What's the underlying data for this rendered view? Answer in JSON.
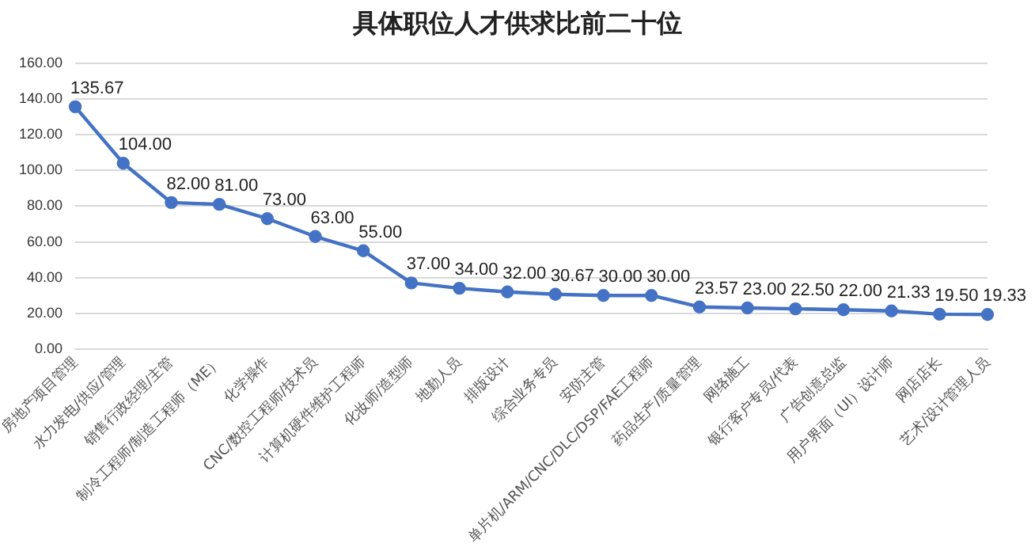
{
  "chart_data": {
    "type": "line",
    "title": "具体职位人才供求比前二十位",
    "categories": [
      "房地产项目管理",
      "水力发电/供应/管理",
      "销售行政经理/主管",
      "制冷工程师/制造工程师（ME）",
      "化学操作",
      "CNC/数控工程师/技术员",
      "计算机硬件维护工程师",
      "化妆师/造型师",
      "地勤人员",
      "排版设计",
      "综合业务专员",
      "安防主管",
      "单片机/ARM/CNC/DLC/DSP/FAE工程师",
      "药品生产/质量管理",
      "网络施工",
      "银行客户专员/代表",
      "广告创意总监",
      "用户界面（UI）设计师",
      "网店店长",
      "艺术/设计管理人员"
    ],
    "series": [
      {
        "color": "#4472c4",
        "values": [
          135.67,
          104,
          82,
          81,
          73,
          63,
          55,
          37,
          34,
          32,
          30.67,
          30,
          30,
          23.57,
          23,
          22.5,
          22,
          21.33,
          19.5,
          19.33
        ],
        "value_labels": [
          "135.67",
          "104.00",
          "82.00",
          "81.00",
          "73.00",
          "63.00",
          "55.00",
          "37.00",
          "34.00",
          "32.00",
          "30.67",
          "30.00",
          "30.00",
          "23.57",
          "23.00",
          "22.50",
          "22.00",
          "21.33",
          "19.50",
          "19.33"
        ]
      }
    ],
    "ylim": [
      0,
      160
    ],
    "yticks": [
      {
        "value": 0,
        "label": "0.00"
      },
      {
        "value": 20,
        "label": "20.00"
      },
      {
        "value": 40,
        "label": "40.00"
      },
      {
        "value": 60,
        "label": "60.00"
      },
      {
        "value": 80,
        "label": "80.00"
      },
      {
        "value": 100,
        "label": "100.00"
      },
      {
        "value": 120,
        "label": "120.00"
      },
      {
        "value": 140,
        "label": "140.00"
      },
      {
        "value": 160,
        "label": "160.00"
      }
    ],
    "grid": "y",
    "legend": false,
    "marker": "circle",
    "line_style": "solid"
  }
}
